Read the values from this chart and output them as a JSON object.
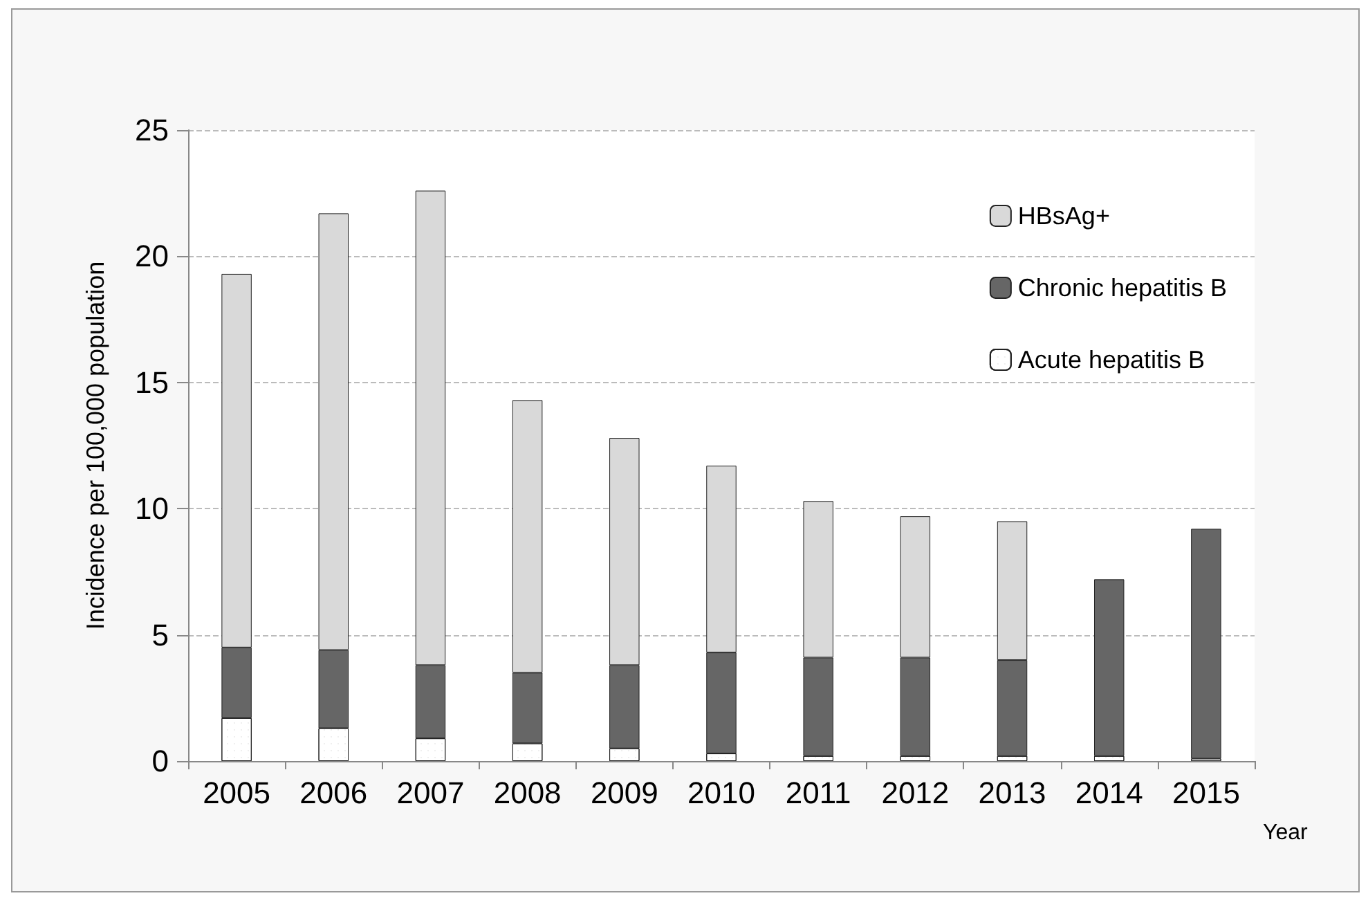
{
  "chart_data": {
    "type": "bar",
    "stacked": true,
    "xlabel": "Year",
    "ylabel": "Incidence per 100,000 population",
    "categories": [
      "2005",
      "2006",
      "2007",
      "2008",
      "2009",
      "2010",
      "2011",
      "2012",
      "2013",
      "2014",
      "2015"
    ],
    "series": [
      {
        "name": "Acute hepatitis B",
        "color": "#ffffff",
        "values": [
          1.7,
          1.3,
          0.9,
          0.7,
          0.5,
          0.3,
          0.2,
          0.2,
          0.2,
          0.2,
          0.1
        ]
      },
      {
        "name": "Chronic hepatitis B",
        "color": "#666666",
        "values": [
          2.8,
          3.1,
          2.9,
          2.8,
          3.3,
          4.0,
          3.9,
          3.9,
          3.8,
          7.0,
          9.1
        ]
      },
      {
        "name": "HBsAg+",
        "color": "#d9d9d9",
        "values": [
          14.8,
          17.3,
          18.8,
          10.8,
          9.0,
          7.4,
          6.2,
          5.6,
          5.5,
          null,
          null
        ]
      }
    ],
    "ylim": [
      0,
      25
    ],
    "yticks": [
      0,
      5,
      10,
      15,
      20,
      25
    ],
    "grid": "y",
    "legend": "top right"
  }
}
